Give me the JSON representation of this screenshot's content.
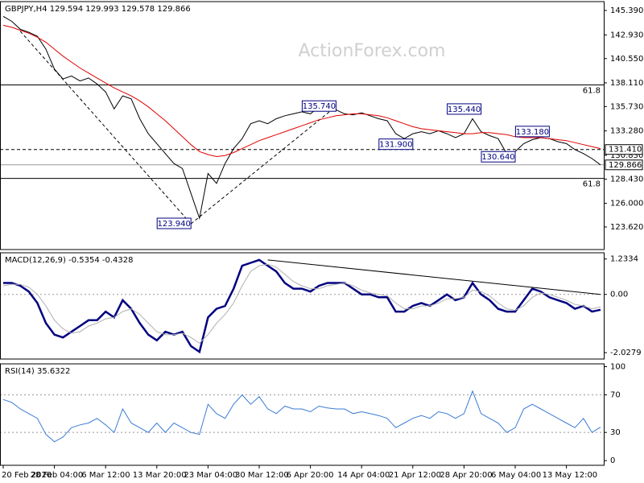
{
  "chart_data": [
    {
      "type": "line",
      "title": "GBPJPY,H4  129.594 129.993 129.578 129.866",
      "watermark": "ActionForex.com",
      "ylim": [
        121.35,
        146.28
      ],
      "yticks": [
        {
          "value": 145.39,
          "label": "145.390"
        },
        {
          "value": 142.93,
          "label": "142.930"
        },
        {
          "value": 140.55,
          "label": "140.550"
        },
        {
          "value": 138.11,
          "label": "138.110"
        },
        {
          "value": 135.73,
          "label": "135.730"
        },
        {
          "value": 133.28,
          "label": "133.280"
        },
        {
          "value": 130.83,
          "label": "130.830"
        },
        {
          "value": 128.43,
          "label": "128.430"
        },
        {
          "value": 126.0,
          "label": "126.000"
        },
        {
          "value": 123.62,
          "label": "123.620"
        }
      ],
      "series": [
        {
          "color": "#000000",
          "values": [
            144.8,
            144.3,
            143.5,
            143.2,
            142.8,
            141.5,
            139.5,
            138.5,
            138.8,
            138.3,
            138.6,
            138.0,
            137.2,
            135.5,
            136.8,
            136.5,
            134.5,
            133.0,
            132.0,
            131.0,
            130.0,
            129.5,
            127.0,
            124.5,
            129.0,
            128.0,
            130.0,
            131.5,
            132.5,
            134.0,
            134.3,
            134.0,
            134.5,
            134.8,
            135.0,
            135.2,
            135.0,
            135.7,
            135.3,
            135.4,
            135.0,
            134.9,
            135.1,
            134.8,
            134.5,
            134.3,
            133.0,
            132.5,
            133.0,
            133.2,
            133.0,
            133.3,
            133.0,
            132.6,
            133.0,
            134.5,
            133.2,
            132.8,
            132.5,
            131.0,
            131.2,
            132.0,
            132.4,
            132.6,
            132.5,
            132.2,
            132.0,
            131.4,
            131.0,
            130.5,
            129.866
          ]
        },
        {
          "color": "#e00000",
          "values": [
            143.9,
            143.7,
            143.4,
            143.1,
            142.7,
            142.2,
            141.5,
            140.8,
            140.2,
            139.6,
            139.1,
            138.6,
            138.1,
            137.6,
            137.2,
            136.8,
            136.3,
            135.7,
            135.0,
            134.3,
            133.5,
            132.7,
            131.9,
            131.2,
            130.9,
            130.7,
            130.8,
            131.1,
            131.5,
            131.9,
            132.3,
            132.6,
            132.9,
            133.2,
            133.5,
            133.8,
            134.1,
            134.4,
            134.6,
            134.8,
            134.9,
            135.0,
            135.0,
            134.9,
            134.8,
            134.6,
            134.3,
            134.0,
            133.7,
            133.5,
            133.4,
            133.3,
            133.2,
            133.1,
            133.0,
            133.0,
            133.1,
            133.1,
            133.0,
            132.9,
            132.7,
            132.6,
            132.6,
            132.6,
            132.5,
            132.4,
            132.3,
            132.1,
            131.9,
            131.7,
            131.5
          ]
        }
      ],
      "levels": [
        {
          "value": 137.9,
          "label": "61.8",
          "style": "solid",
          "color": "#000000",
          "label_at": "line"
        },
        {
          "value": 131.41,
          "label": "131.410",
          "style": "dashed",
          "color": "#000000",
          "label_at": "axis"
        },
        {
          "value": 129.866,
          "label": "129.866",
          "style": "solid",
          "color": "#999999",
          "label_at": "axis"
        },
        {
          "value": 128.5,
          "label": "61.8",
          "style": "solid",
          "color": "#000000",
          "label_at": "line"
        }
      ],
      "annotations": [
        {
          "label": "135.740",
          "value": 135.74,
          "x": 39
        },
        {
          "label": "135.440",
          "value": 135.44,
          "x": 56
        },
        {
          "label": "133.180",
          "value": 133.18,
          "x": 64
        },
        {
          "label": "131.900",
          "value": 131.9,
          "x": 48
        },
        {
          "label": "130.640",
          "value": 130.64,
          "x": 60
        },
        {
          "label": "123.940",
          "value": 123.94,
          "x": 22
        }
      ],
      "trendlines": [
        [
          [
            2,
            143.3
          ],
          [
            22,
            123.94
          ]
        ],
        [
          [
            22,
            123.94
          ],
          [
            39,
            135.74
          ]
        ]
      ]
    },
    {
      "type": "line",
      "title": "MACD(12,26,9) -0.5354 -0.4328",
      "ylim": [
        -2.25,
        1.45
      ],
      "yticks": [
        1.2334,
        {
          "value": 0,
          "label": "0.00"
        },
        -2.0279
      ],
      "zero_line": true,
      "series": [
        {
          "color": "#000080",
          "values": [
            0.4,
            0.4,
            0.3,
            0.1,
            -0.3,
            -1.0,
            -1.4,
            -1.5,
            -1.3,
            -1.1,
            -0.9,
            -0.9,
            -0.6,
            -0.8,
            -0.2,
            -0.5,
            -1.0,
            -1.4,
            -1.6,
            -1.3,
            -1.4,
            -1.3,
            -1.8,
            -2.0,
            -0.8,
            -0.5,
            -0.4,
            0.2,
            1.0,
            1.1,
            1.2,
            1.0,
            0.8,
            0.4,
            0.2,
            0.2,
            0.1,
            0.3,
            0.4,
            0.4,
            0.4,
            0.2,
            0.0,
            0.0,
            -0.1,
            -0.1,
            -0.6,
            -0.6,
            -0.4,
            -0.3,
            -0.4,
            -0.2,
            0.0,
            -0.2,
            -0.1,
            0.4,
            0.0,
            -0.2,
            -0.5,
            -0.6,
            -0.6,
            -0.2,
            0.2,
            0.1,
            -0.1,
            -0.2,
            -0.3,
            -0.5,
            -0.4,
            -0.6,
            -0.5354
          ]
        },
        {
          "color": "#b0b0b0",
          "values": [
            0.3,
            0.35,
            0.35,
            0.25,
            0.0,
            -0.4,
            -0.9,
            -1.2,
            -1.35,
            -1.3,
            -1.1,
            -1.0,
            -0.85,
            -0.8,
            -0.6,
            -0.5,
            -0.7,
            -1.0,
            -1.3,
            -1.4,
            -1.4,
            -1.35,
            -1.5,
            -1.7,
            -1.4,
            -1.0,
            -0.7,
            -0.3,
            0.3,
            0.8,
            1.0,
            1.05,
            0.95,
            0.7,
            0.45,
            0.3,
            0.2,
            0.2,
            0.3,
            0.35,
            0.4,
            0.3,
            0.15,
            0.05,
            0.0,
            -0.05,
            -0.3,
            -0.5,
            -0.5,
            -0.4,
            -0.4,
            -0.3,
            -0.15,
            -0.15,
            -0.1,
            0.15,
            0.1,
            -0.05,
            -0.3,
            -0.5,
            -0.55,
            -0.4,
            -0.1,
            0.05,
            0.0,
            -0.1,
            -0.2,
            -0.35,
            -0.4,
            -0.5,
            -0.4328
          ]
        }
      ],
      "trendlines": [
        [
          [
            31,
            1.2
          ],
          [
            70,
            0.0
          ]
        ]
      ]
    },
    {
      "type": "line",
      "title": "RSI(14) 35.6322",
      "ylim": [
        -5,
        103
      ],
      "yticks": [
        100,
        70,
        30,
        0
      ],
      "grid": true,
      "categories": [
        "20 Feb 2020",
        null,
        null,
        null,
        null,
        null,
        "28 Feb 04:00",
        null,
        null,
        null,
        null,
        null,
        "6 Mar 12:00",
        null,
        null,
        null,
        null,
        null,
        "13 Mar 20:00",
        null,
        null,
        null,
        null,
        null,
        "23 Mar 04:00",
        null,
        null,
        null,
        null,
        null,
        "30 Mar 12:00",
        null,
        null,
        null,
        null,
        null,
        "6 Apr 20:00",
        null,
        null,
        null,
        null,
        null,
        "14 Apr 04:00",
        null,
        null,
        null,
        null,
        null,
        "21 Apr 12:00",
        null,
        null,
        null,
        null,
        null,
        "28 Apr 20:00",
        null,
        null,
        null,
        null,
        null,
        "6 May 04:00",
        null,
        null,
        null,
        null,
        null,
        "13 May 12:00",
        null,
        null,
        null,
        null
      ],
      "series": [
        {
          "color": "#3a7bd5",
          "values": [
            65,
            62,
            55,
            50,
            45,
            28,
            20,
            25,
            35,
            38,
            40,
            45,
            38,
            30,
            55,
            40,
            35,
            30,
            40,
            30,
            40,
            35,
            30,
            28,
            60,
            50,
            45,
            60,
            70,
            60,
            68,
            55,
            50,
            58,
            55,
            55,
            52,
            58,
            56,
            55,
            55,
            50,
            52,
            50,
            48,
            45,
            35,
            40,
            45,
            48,
            45,
            52,
            50,
            45,
            50,
            74,
            50,
            45,
            40,
            30,
            35,
            55,
            60,
            55,
            50,
            45,
            40,
            35,
            45,
            30,
            35.6322
          ]
        }
      ]
    }
  ]
}
